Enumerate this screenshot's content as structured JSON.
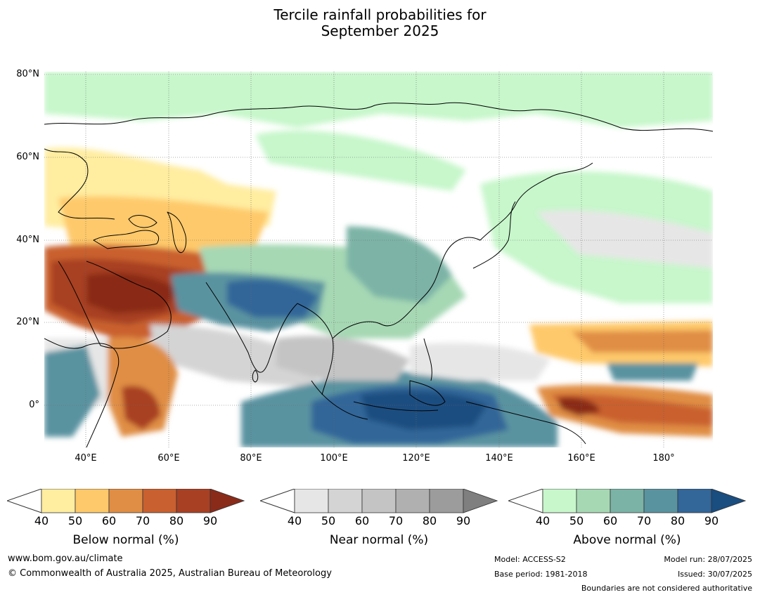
{
  "title": {
    "line1": "Tercile rainfall probabilities for",
    "line2": "September 2025"
  },
  "map": {
    "lat_labels": [
      "80°N",
      "60°N",
      "40°N",
      "20°N",
      "0°"
    ],
    "lon_labels": [
      "40°E",
      "60°E",
      "80°E",
      "100°E",
      "120°E",
      "140°E",
      "160°E",
      "180°"
    ]
  },
  "legend": {
    "below": {
      "title": "Below normal (%)",
      "ticks": [
        "40",
        "50",
        "60",
        "70",
        "80",
        "90"
      ],
      "colors": [
        "#ffeda0",
        "#fec96a",
        "#e08e45",
        "#c9602f",
        "#a84024",
        "#8a2b19"
      ]
    },
    "near": {
      "title": "Near normal (%)",
      "ticks": [
        "40",
        "50",
        "60",
        "70",
        "80",
        "90"
      ],
      "colors": [
        "#e6e6e6",
        "#d4d4d4",
        "#c4c4c4",
        "#b0b0b0",
        "#9c9c9c",
        "#7f7f7f"
      ]
    },
    "above": {
      "title": "Above normal (%)",
      "ticks": [
        "40",
        "50",
        "60",
        "70",
        "80",
        "90"
      ],
      "colors": [
        "#c7f7cb",
        "#a6d8b4",
        "#7bb3a6",
        "#5a93a0",
        "#336699",
        "#1a4d80"
      ]
    }
  },
  "footer": {
    "website": "www.bom.gov.au/climate",
    "copyright": "© Commonwealth of Australia 2025, Australian Bureau of Meteorology",
    "model": "Model: ACCESS-S2",
    "base_period": "Base period: 1981-2018",
    "model_run": "Model run: 28/07/2025",
    "issued": "Issued: 30/07/2025",
    "disclaimer": "Boundaries are not considered authoritative"
  }
}
